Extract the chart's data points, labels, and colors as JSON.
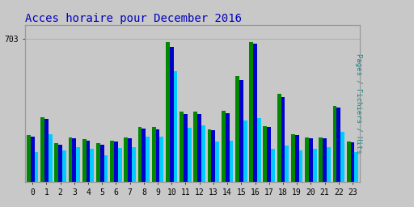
{
  "title": "Acces horaire pour December 2016",
  "hours": [
    0,
    1,
    2,
    3,
    4,
    5,
    6,
    7,
    8,
    9,
    10,
    11,
    12,
    13,
    14,
    15,
    16,
    17,
    18,
    19,
    20,
    21,
    22,
    23
  ],
  "pages": [
    230,
    320,
    190,
    220,
    210,
    190,
    205,
    220,
    270,
    270,
    690,
    345,
    345,
    260,
    350,
    520,
    690,
    275,
    435,
    235,
    220,
    220,
    375,
    200
  ],
  "fichiers": [
    225,
    310,
    185,
    215,
    205,
    185,
    200,
    215,
    265,
    260,
    665,
    335,
    335,
    255,
    340,
    500,
    680,
    270,
    420,
    230,
    215,
    215,
    365,
    195
  ],
  "hits": [
    150,
    235,
    158,
    173,
    163,
    133,
    168,
    173,
    223,
    223,
    545,
    268,
    278,
    198,
    203,
    305,
    315,
    163,
    178,
    158,
    163,
    173,
    248,
    148
  ],
  "ymax": 703,
  "ytick": 703,
  "color_pages": "#008800",
  "color_fichiers": "#0000CC",
  "color_hits": "#00CCFF",
  "bg_color": "#C8C8C8",
  "plot_bg": "#C8C8C8",
  "title_color": "#0000BB",
  "ylabel_color": "#008888",
  "ylabel": "Pages / Fichiers / Hits",
  "bar_width": 0.28,
  "figwidth": 5.12,
  "figheight": 2.56,
  "dpi": 100
}
